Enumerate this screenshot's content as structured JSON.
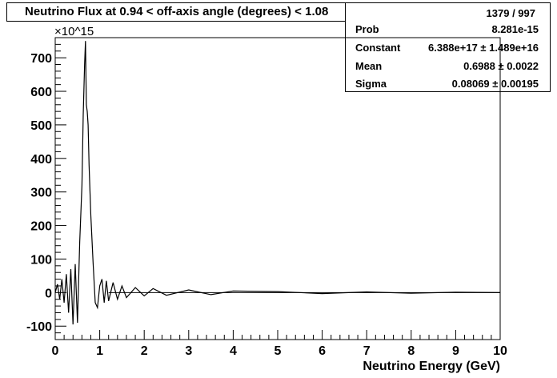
{
  "title": "Neutrino Flux at  0.94 < off-axis angle (degrees) <  1.08",
  "stats": {
    "header": "1379 / 997",
    "rows": [
      {
        "label": "Prob",
        "value": "8.281e-15"
      },
      {
        "label": "Constant",
        "value": "6.388e+17 ± 1.489e+16"
      },
      {
        "label": "Mean",
        "value": "0.6988 ± 0.0022"
      },
      {
        "label": "Sigma",
        "value": "0.08069 ± 0.00195"
      }
    ]
  },
  "chart_data": {
    "type": "line",
    "title": "Neutrino Flux at  0.94 < off-axis angle (degrees) <  1.08",
    "xlabel": "Neutrino Energy (GeV)",
    "ylabel": "",
    "y_multiplier": "×10^15",
    "xlim": [
      0,
      10
    ],
    "ylim": [
      -140,
      760
    ],
    "x_ticks": [
      0,
      1,
      2,
      3,
      4,
      5,
      6,
      7,
      8,
      9,
      10
    ],
    "y_ticks": [
      -100,
      0,
      100,
      200,
      300,
      400,
      500,
      600,
      700
    ],
    "grid": false,
    "series": [
      {
        "x": [
          0.0,
          0.05,
          0.1,
          0.15,
          0.2,
          0.25,
          0.3,
          0.35,
          0.4,
          0.45,
          0.5,
          0.55,
          0.6,
          0.63,
          0.66,
          0.68,
          0.7,
          0.72,
          0.74,
          0.76,
          0.8,
          0.85,
          0.9,
          0.95,
          1.0,
          1.05,
          1.1,
          1.15,
          1.2,
          1.3,
          1.4,
          1.5,
          1.6,
          1.8,
          2.0,
          2.2,
          2.5,
          3.0,
          3.5,
          4.0,
          5.0,
          6.0,
          7.0,
          8.0,
          9.0,
          10.0
        ],
        "values": [
          0,
          25,
          -20,
          40,
          -30,
          55,
          -60,
          70,
          -95,
          85,
          -90,
          150,
          320,
          530,
          680,
          750,
          560,
          540,
          500,
          380,
          230,
          90,
          -30,
          -45,
          20,
          40,
          -30,
          35,
          -25,
          30,
          -20,
          20,
          -15,
          15,
          -10,
          12,
          -8,
          8,
          -6,
          5,
          3,
          -3,
          2,
          -2,
          1,
          0
        ]
      }
    ]
  }
}
